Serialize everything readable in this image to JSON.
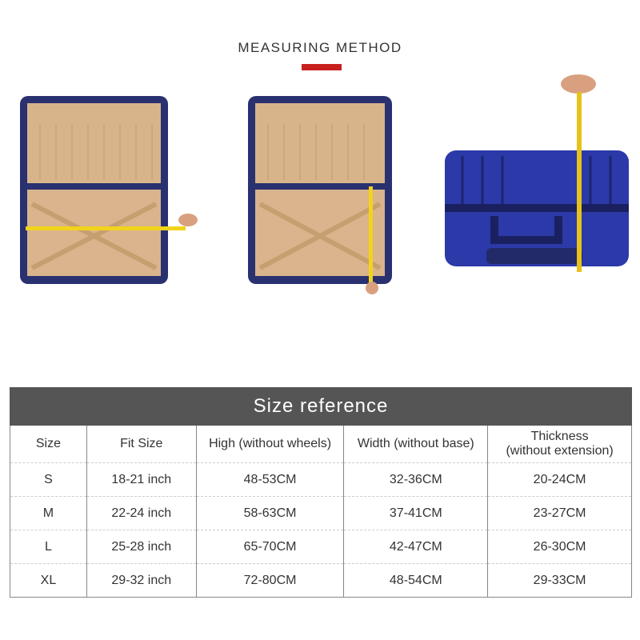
{
  "heading": {
    "title": "MEASURING METHOD",
    "accent_color": "#c8201e"
  },
  "photos": [
    {
      "icon": "open-suitcase-width-measurement-photo"
    },
    {
      "icon": "open-suitcase-height-measurement-photo"
    },
    {
      "icon": "closed-suitcase-thickness-measurement-photo"
    }
  ],
  "size_table": {
    "title": "Size reference",
    "band_color": "#555555",
    "columns": [
      "Size",
      "Fit Size",
      "High (without wheels)",
      "Width (without base)",
      "Thickness\n(without extension)"
    ],
    "thickness_line1": "Thickness",
    "thickness_line2": "(without extension)",
    "rows": [
      [
        "S",
        "18-21 inch",
        "48-53CM",
        "32-36CM",
        "20-24CM"
      ],
      [
        "M",
        "22-24 inch",
        "58-63CM",
        "37-41CM",
        "23-27CM"
      ],
      [
        "L",
        "25-28 inch",
        "65-70CM",
        "42-47CM",
        "26-30CM"
      ],
      [
        "XL",
        "29-32 inch",
        "72-80CM",
        "48-54CM",
        "29-33CM"
      ]
    ]
  }
}
